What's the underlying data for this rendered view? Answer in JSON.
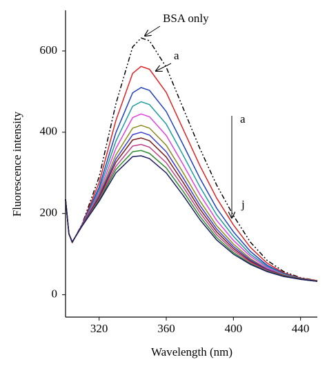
{
  "chart_data": {
    "type": "line",
    "x_label": "Wavelength (nm)",
    "y_label": "Fluorescence intensity",
    "x": [
      300,
      302,
      304,
      310,
      320,
      330,
      340,
      345,
      350,
      360,
      370,
      380,
      390,
      400,
      410,
      420,
      430,
      440,
      450
    ],
    "xlim": [
      300,
      450
    ],
    "xticks": [
      320,
      360,
      400,
      440
    ],
    "ylim": [
      -55,
      700
    ],
    "yticks": [
      0,
      200,
      400,
      600
    ],
    "series": [
      {
        "color": "#000000",
        "dash": "dashdot",
        "values": [
          235,
          150,
          128,
          175,
          290,
          470,
          610,
          632,
          625,
          560,
          460,
          360,
          270,
          195,
          130,
          85,
          57,
          42,
          35
        ]
      },
      {
        "color": "#e02020",
        "values": [
          235,
          150,
          128,
          174,
          276,
          429,
          545,
          562,
          555,
          498,
          408,
          318,
          238,
          172,
          117,
          78,
          54,
          41,
          35
        ]
      },
      {
        "color": "#1f3fbf",
        "values": [
          235,
          150,
          129,
          173,
          265,
          399,
          497,
          510,
          503,
          451,
          370,
          287,
          213,
          155,
          107,
          73,
          52,
          40,
          34
        ]
      },
      {
        "color": "#1a9a9a",
        "values": [
          235,
          150,
          129,
          172,
          258,
          378,
          464,
          475,
          468,
          420,
          344,
          266,
          197,
          144,
          100,
          70,
          51,
          40,
          34
        ]
      },
      {
        "color": "#e040e0",
        "values": [
          235,
          150,
          129,
          172,
          251,
          360,
          436,
          445,
          438,
          392,
          321,
          247,
          183,
          134,
          95,
          67,
          49,
          39,
          34
        ]
      },
      {
        "color": "#8a8a20",
        "values": [
          235,
          150,
          129,
          171,
          246,
          344,
          410,
          417,
          410,
          368,
          301,
          231,
          170,
          125,
          89,
          64,
          48,
          39,
          34
        ]
      },
      {
        "color": "#3a3ad0",
        "values": [
          235,
          150,
          130,
          171,
          242,
          334,
          394,
          400,
          393,
          352,
          288,
          220,
          162,
          119,
          86,
          63,
          47,
          39,
          33
        ]
      },
      {
        "color": "#7a1a1a",
        "values": [
          235,
          150,
          130,
          171,
          239,
          326,
          381,
          386,
          379,
          339,
          277,
          211,
          155,
          114,
          83,
          61,
          47,
          39,
          33
        ]
      },
      {
        "color": "#c0408a",
        "values": [
          235,
          150,
          130,
          170,
          236,
          316,
          366,
          370,
          363,
          325,
          266,
          202,
          148,
          109,
          80,
          60,
          46,
          38,
          33
        ]
      },
      {
        "color": "#2a8a2a",
        "values": [
          235,
          150,
          130,
          170,
          233,
          308,
          352,
          355,
          348,
          312,
          255,
          193,
          141,
          104,
          77,
          58,
          46,
          38,
          33
        ]
      },
      {
        "color": "#1a1a60",
        "values": [
          235,
          150,
          130,
          170,
          230,
          300,
          340,
          342,
          335,
          300,
          245,
          185,
          135,
          100,
          75,
          57,
          45,
          38,
          33
        ]
      }
    ],
    "annotations": [
      "BSA only",
      "a",
      "a",
      "j"
    ]
  }
}
